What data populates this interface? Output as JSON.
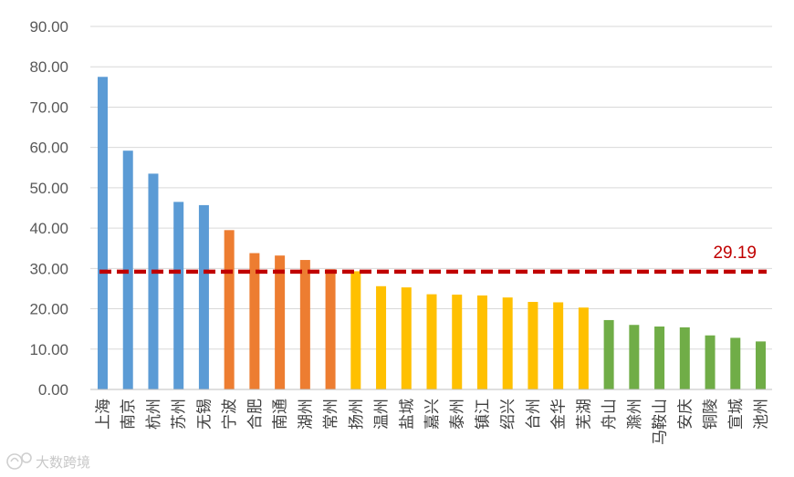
{
  "chart_data": {
    "type": "bar",
    "title": "",
    "xlabel": "",
    "ylabel": "",
    "ylim": [
      0,
      90
    ],
    "yticks": [
      "0.00",
      "10.00",
      "20.00",
      "30.00",
      "40.00",
      "50.00",
      "60.00",
      "70.00",
      "80.00",
      "90.00"
    ],
    "grid": true,
    "categories": [
      "上海",
      "南京",
      "杭州",
      "苏州",
      "无锡",
      "宁波",
      "合肥",
      "南通",
      "湖州",
      "常州",
      "扬州",
      "温州",
      "盐城",
      "嘉兴",
      "泰州",
      "镇江",
      "绍兴",
      "台州",
      "金华",
      "芜湖",
      "舟山",
      "滁州",
      "马鞍山",
      "安庆",
      "铜陵",
      "宣城",
      "池州"
    ],
    "values": [
      77.5,
      59.2,
      53.5,
      46.5,
      45.7,
      39.5,
      33.8,
      33.2,
      32.1,
      29.8,
      29.3,
      25.6,
      25.3,
      23.6,
      23.5,
      23.3,
      22.8,
      21.7,
      21.6,
      20.3,
      17.2,
      16.0,
      15.6,
      15.4,
      13.4,
      12.8,
      11.9
    ],
    "colors": [
      "#5b9bd5",
      "#5b9bd5",
      "#5b9bd5",
      "#5b9bd5",
      "#5b9bd5",
      "#ed7d31",
      "#ed7d31",
      "#ed7d31",
      "#ed7d31",
      "#ed7d31",
      "#ffc000",
      "#ffc000",
      "#ffc000",
      "#ffc000",
      "#ffc000",
      "#ffc000",
      "#ffc000",
      "#ffc000",
      "#ffc000",
      "#ffc000",
      "#70ad47",
      "#70ad47",
      "#70ad47",
      "#70ad47",
      "#70ad47",
      "#70ad47",
      "#70ad47"
    ],
    "reference_line": {
      "value": 29.19,
      "label": "29.19",
      "color": "#c00000",
      "style": "dashed"
    }
  },
  "watermark": {
    "text": "大数跨境",
    "logo_icon": "brand-logo-icon",
    "color": "#c8c8c8"
  }
}
